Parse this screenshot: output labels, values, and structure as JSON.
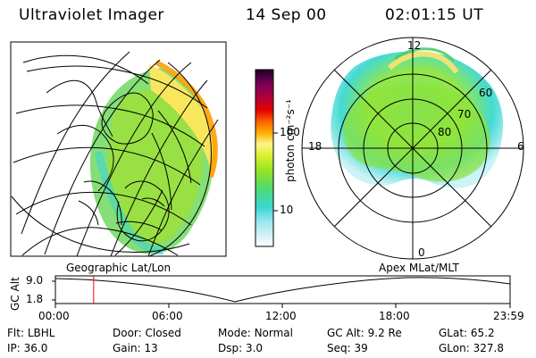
{
  "header": {
    "instrument": "Ultraviolet Imager",
    "date": "14 Sep 00",
    "time": "02:01:15 UT"
  },
  "colorbar": {
    "ticks": [
      "100",
      "10"
    ],
    "unit": "photon cm⁻²s⁻¹"
  },
  "polar_plot": {
    "hour_labels": [
      "12",
      "18",
      "6",
      "0"
    ],
    "lat_labels": [
      "60",
      "70",
      "80"
    ]
  },
  "timeline": {
    "y_axis_label": "GC Alt",
    "y_ticks": [
      "9.0",
      "1.8"
    ],
    "left_caption": "Geographic Lat/Lon",
    "right_caption": "Apex MLat/MLT",
    "x_ticks": [
      "00:00",
      "06:00",
      "12:00",
      "18:00",
      "23:59"
    ],
    "current_time_hours": 2.02
  },
  "footer": {
    "row1": [
      {
        "label": "Flt:",
        "value": "LBHL"
      },
      {
        "label": "Door:",
        "value": "Closed"
      },
      {
        "label": "Mode:",
        "value": "Normal"
      },
      {
        "label": "GC Alt:",
        "value": "9.2 Re"
      },
      {
        "label": "GLat:",
        "value": "65.2"
      }
    ],
    "row2": [
      {
        "label": "IP:",
        "value": "36.0"
      },
      {
        "label": "Gain:",
        "value": "13"
      },
      {
        "label": "Dsp:",
        "value": "3.0"
      },
      {
        "label": "Seq:",
        "value": "39"
      },
      {
        "label": "GLon:",
        "value": "327.8"
      }
    ]
  },
  "colors": {
    "marker": "#ff0000",
    "line": "#000000"
  }
}
